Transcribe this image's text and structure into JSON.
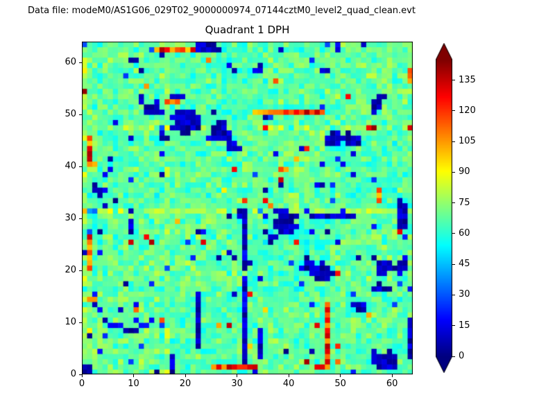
{
  "header": {
    "datafile_label": "Data file: modeM0/AS1G06_029T02_9000000974_07144cztM0_level2_quad_clean.evt"
  },
  "chart_data": {
    "type": "heatmap",
    "title": "Quadrant 1 DPH",
    "grid_size": 64,
    "xlim": [
      0,
      64
    ],
    "ylim": [
      0,
      64
    ],
    "xticks": [
      0,
      10,
      20,
      30,
      40,
      50,
      60
    ],
    "yticks": [
      0,
      10,
      20,
      30,
      40,
      50,
      60
    ],
    "colormap": "jet",
    "vmin": 0,
    "vmax": 145,
    "colorbar_ticks": [
      0,
      15,
      30,
      45,
      60,
      75,
      90,
      105,
      120,
      135
    ],
    "colorbar_extend": "both",
    "background": {
      "mean": 67,
      "spread": 15,
      "seed": 42
    },
    "module_offsets": [
      [
        2,
        -1,
        1,
        0
      ],
      [
        0,
        2,
        -2,
        1
      ],
      [
        -1,
        0,
        2,
        -1
      ],
      [
        1,
        -2,
        0,
        2
      ]
    ],
    "band_rows": [
      [
        31,
        12
      ],
      [
        47,
        9
      ]
    ],
    "band_cols": [
      [
        16,
        8
      ],
      [
        0,
        10
      ]
    ],
    "scatter_low_prob": 0.022,
    "scatter_high_prob": 0.012,
    "low_blobs": [
      [
        13,
        51,
        2.2,
        1.8
      ],
      [
        19.5,
        48,
        3,
        2.4
      ],
      [
        18,
        53,
        1.4,
        1
      ],
      [
        26.5,
        46,
        2.4,
        2.2
      ],
      [
        29,
        43.5,
        1.8,
        1.4
      ],
      [
        15,
        45,
        1.5,
        1.2
      ],
      [
        11,
        52.5,
        1,
        0.8
      ],
      [
        52,
        44.5,
        2.4,
        1.6
      ],
      [
        48,
        45,
        1.5,
        1.5
      ],
      [
        56.5,
        51.5,
        1.4,
        2
      ],
      [
        39,
        29,
        2.6,
        2.6
      ],
      [
        36,
        26,
        1.5,
        1.5
      ],
      [
        46,
        19.5,
        2.4,
        1.8
      ],
      [
        43,
        21,
        1.4,
        1.4
      ],
      [
        58,
        20,
        2,
        1.6
      ],
      [
        58,
        2.5,
        3,
        1.8
      ],
      [
        61.5,
        31,
        1.4,
        4
      ],
      [
        61.5,
        21,
        1.2,
        2
      ],
      [
        53,
        13,
        2,
        1.4
      ],
      [
        57,
        16,
        1.4,
        1.1
      ],
      [
        9,
        28,
        1.3,
        1.2
      ],
      [
        2.5,
        35,
        1.2,
        1.8
      ],
      [
        24,
        62.5,
        3,
        1
      ],
      [
        9.5,
        60,
        1.2,
        1
      ],
      [
        33.5,
        58.5,
        1.4,
        1
      ],
      [
        47,
        58,
        1,
        1
      ],
      [
        0.5,
        0.5,
        1.4,
        1.4
      ],
      [
        30.5,
        30.5,
        1.4,
        1.2
      ]
    ],
    "low_lines": [
      [
        30.5,
        2,
        30.5,
        18
      ],
      [
        31,
        20,
        31,
        30
      ],
      [
        22,
        5,
        22,
        15
      ],
      [
        2,
        13,
        5,
        9
      ],
      [
        5,
        9,
        9,
        8
      ],
      [
        9,
        8,
        13,
        10
      ],
      [
        16.5,
        0,
        16.5,
        3
      ],
      [
        44,
        29.5,
        52,
        29.5
      ],
      [
        34,
        3,
        34,
        8
      ],
      [
        63,
        3,
        63,
        10
      ]
    ],
    "high_segments": [
      [
        14,
        62,
        26,
        62
      ],
      [
        33,
        49.5,
        46,
        49.5
      ],
      [
        46.5,
        1,
        46.5,
        13
      ],
      [
        0.5,
        40,
        0.5,
        45
      ],
      [
        0.5,
        20,
        0.5,
        26
      ],
      [
        25,
        0.5,
        33,
        0.5
      ],
      [
        45,
        0.5,
        47,
        0.5
      ],
      [
        0.5,
        14,
        2,
        14
      ],
      [
        57,
        33,
        57,
        35
      ],
      [
        63,
        56,
        63,
        58
      ],
      [
        16,
        52,
        18,
        52
      ]
    ]
  }
}
